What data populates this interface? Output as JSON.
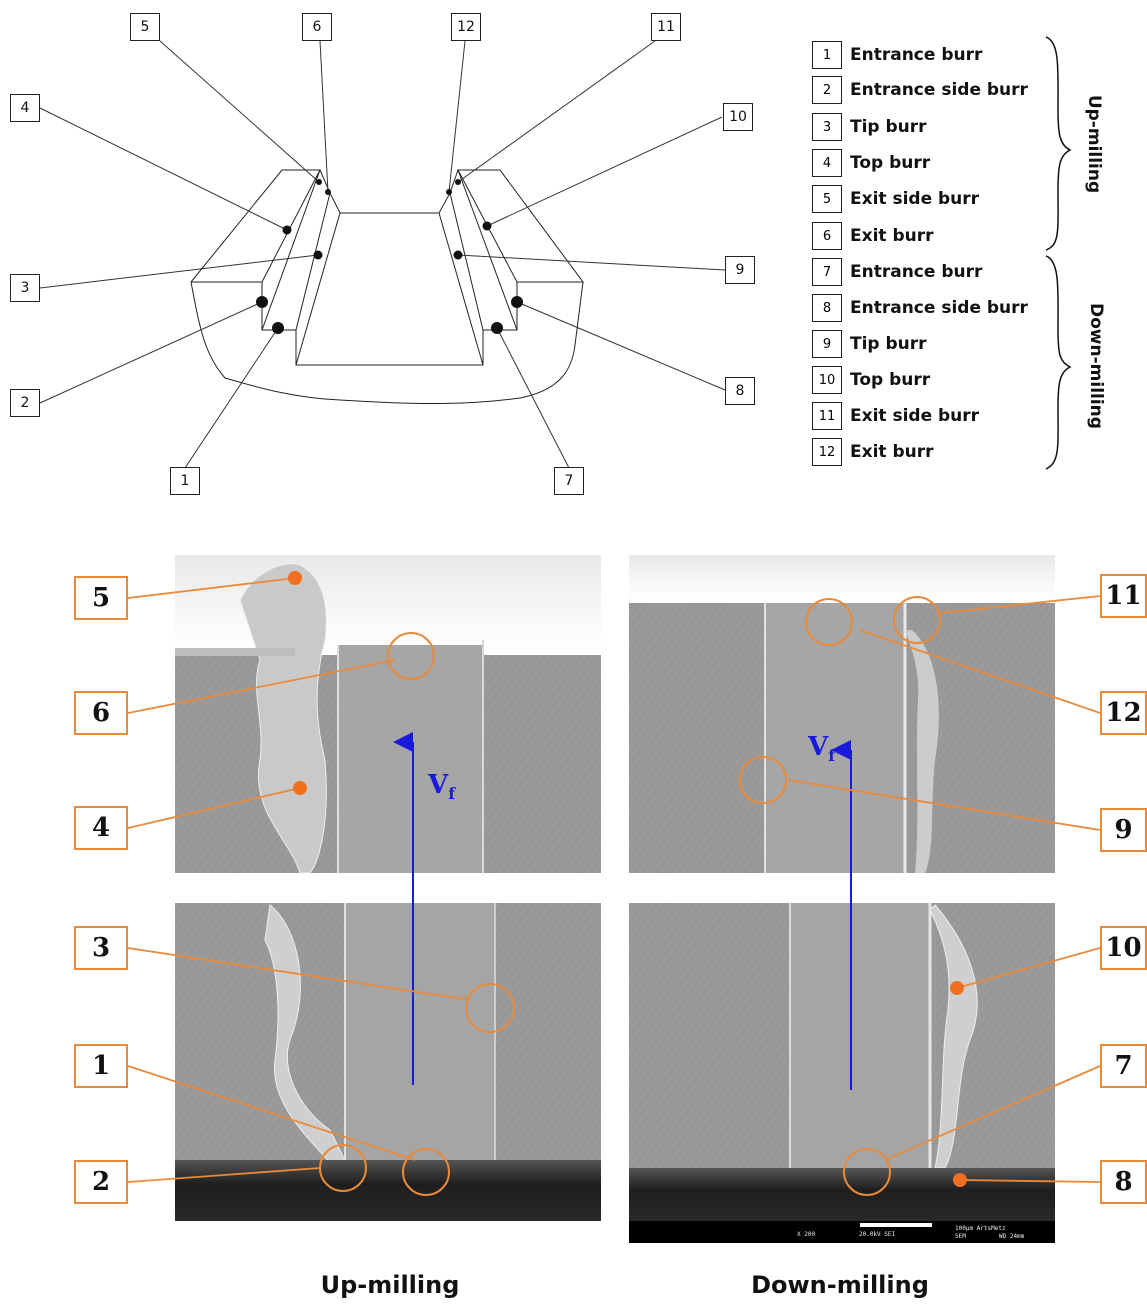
{
  "schematic_labels": [
    "5",
    "6",
    "12",
    "11",
    "4",
    "10",
    "3",
    "9",
    "2",
    "8",
    "1",
    "7"
  ],
  "legend": {
    "items": [
      {
        "num": "1",
        "text": "Entrance burr"
      },
      {
        "num": "2",
        "text": "Entrance side burr"
      },
      {
        "num": "3",
        "text": "Tip burr"
      },
      {
        "num": "4",
        "text": "Top burr"
      },
      {
        "num": "5",
        "text": "Exit side burr"
      },
      {
        "num": "6",
        "text": "Exit burr"
      },
      {
        "num": "7",
        "text": "Entrance burr"
      },
      {
        "num": "8",
        "text": "Entrance side burr"
      },
      {
        "num": "9",
        "text": "Tip burr"
      },
      {
        "num": "10",
        "text": "Top burr"
      },
      {
        "num": "11",
        "text": "Exit side burr"
      },
      {
        "num": "12",
        "text": "Exit burr"
      }
    ],
    "group_up": "Up-milling",
    "group_down": "Down-milling"
  },
  "photos": {
    "up_title": "Up-milling",
    "down_title": "Down-milling",
    "feed_symbol": "V",
    "feed_subscript": "f",
    "scale_bar": {
      "magnification": "X 200",
      "voltage": "20.0kV SEI",
      "bar": "100μm ArtsMetz",
      "mode": "SEM",
      "wd": "WD 24mm"
    },
    "up_labels": [
      "5",
      "6",
      "4",
      "3",
      "1",
      "2"
    ],
    "down_labels": [
      "11",
      "12",
      "9",
      "10",
      "7",
      "8"
    ]
  },
  "colors": {
    "callout": "#e98a3a",
    "feed_arrow": "#1a1adc",
    "outline": "#222222"
  }
}
